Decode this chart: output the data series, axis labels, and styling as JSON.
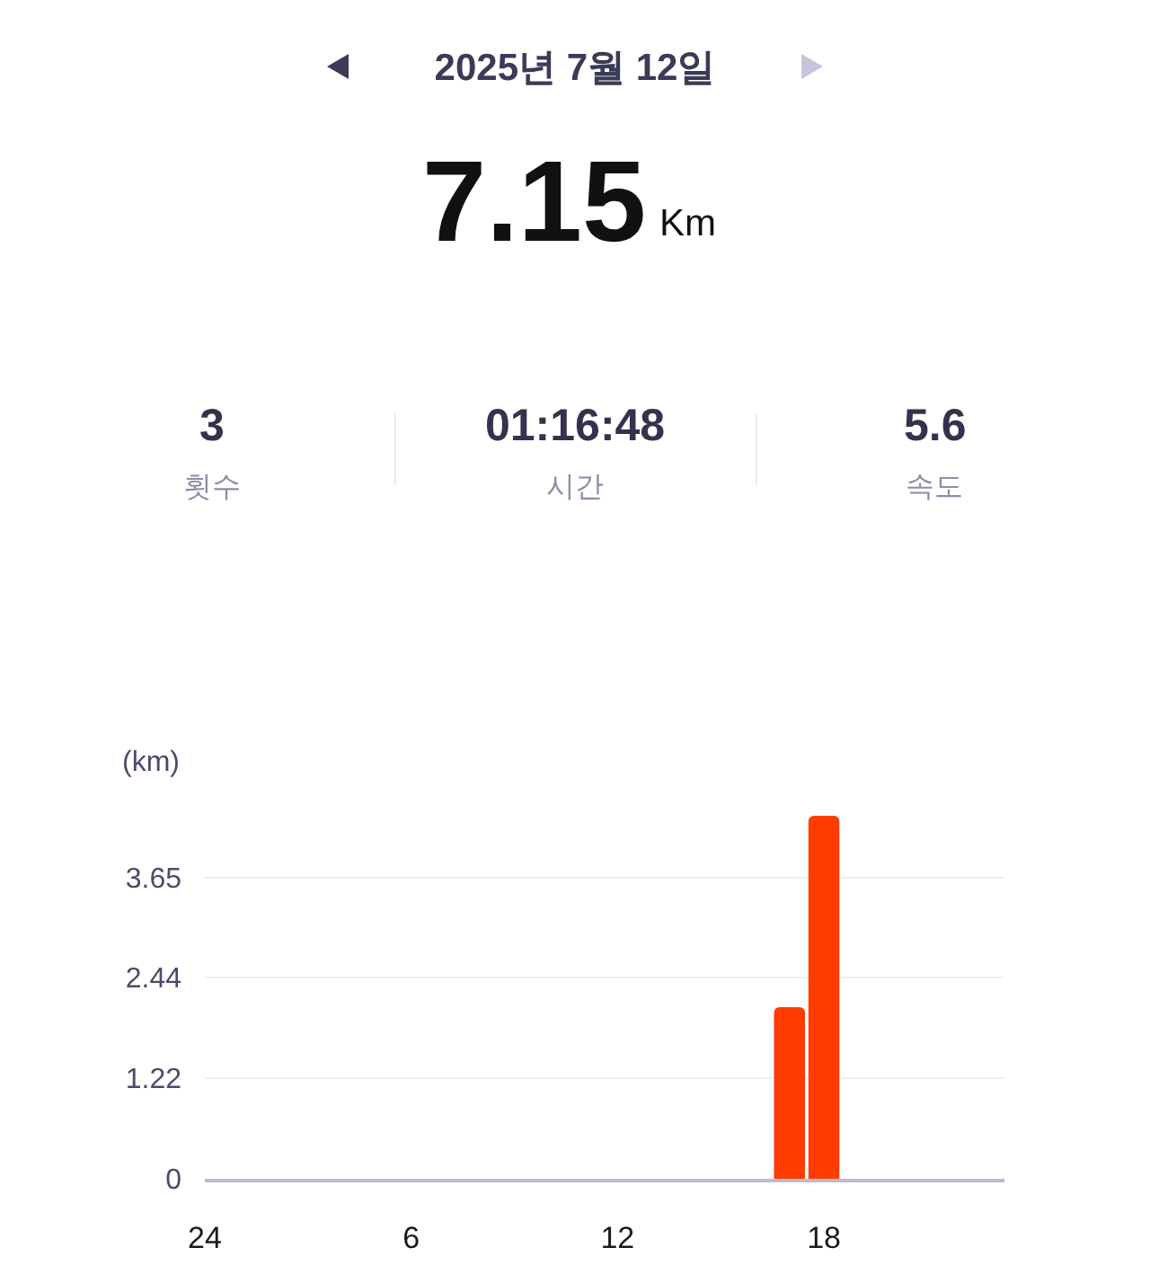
{
  "chart_data": {
    "type": "bar",
    "title": "2025년 7월 12일",
    "annotations": [
      "7.15",
      "Km",
      "3",
      "횟수",
      "01:16:48",
      "시간",
      "5.6",
      "속도"
    ],
    "ylabel": "(km)",
    "categories": [
      "24",
      null,
      null,
      null,
      null,
      null,
      "6",
      null,
      null,
      null,
      null,
      null,
      "12",
      null,
      null,
      null,
      null,
      null,
      "18",
      null,
      null,
      null,
      null,
      null
    ],
    "series": [
      {
        "color": "#ff3c00",
        "values": [
          null,
          null,
          null,
          null,
          null,
          null,
          null,
          null,
          null,
          null,
          null,
          null,
          null,
          null,
          null,
          null,
          null,
          2.08,
          4.4,
          null,
          null,
          null,
          null,
          null
        ]
      }
    ],
    "ylim": [
      0,
      4.4
    ],
    "yticks": [
      0,
      1.22,
      2.44,
      3.65
    ],
    "grid": "y"
  }
}
